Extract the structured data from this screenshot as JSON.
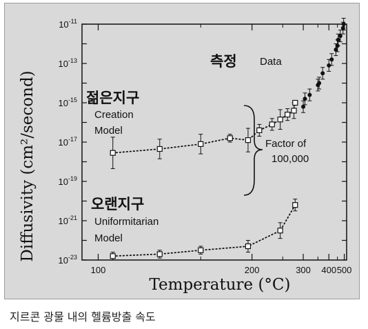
{
  "caption": "지르콘 광물 내의 헬륨방출 속도",
  "chart_data": {
    "type": "scatter",
    "xlabel": "Temperature (°C)",
    "ylabel": "Diffusivity (cm²/second)",
    "x_scale": "reciprocal",
    "y_scale": "log",
    "xlim": [
      95,
      520
    ],
    "ylim": [
      1e-23,
      1e-11
    ],
    "x_ticks": [
      "100",
      "200",
      "300",
      "400",
      "500"
    ],
    "y_ticks": [
      {
        "base": "10",
        "exp": "-11"
      },
      {
        "base": "10",
        "exp": "-13"
      },
      {
        "base": "10",
        "exp": "-15"
      },
      {
        "base": "10",
        "exp": "-17"
      },
      {
        "base": "10",
        "exp": "-19"
      },
      {
        "base": "10",
        "exp": "-21"
      },
      {
        "base": "10",
        "exp": "-23"
      }
    ],
    "series": [
      {
        "name": "Data",
        "marker": "filled-circle",
        "points": [
          {
            "x": 300,
            "y": -15.2,
            "err": 0.3
          },
          {
            "x": 305,
            "y": -14.8,
            "err": 0.3
          },
          {
            "x": 320,
            "y": -14.6,
            "err": 0.3
          },
          {
            "x": 350,
            "y": -14.1,
            "err": 0.3
          },
          {
            "x": 355,
            "y": -14.0,
            "err": 0.3
          },
          {
            "x": 370,
            "y": -13.5,
            "err": 0.3
          },
          {
            "x": 400,
            "y": -13.1,
            "err": 0.3
          },
          {
            "x": 415,
            "y": -12.8,
            "err": 0.3
          },
          {
            "x": 440,
            "y": -12.3,
            "err": 0.3
          },
          {
            "x": 450,
            "y": -12.1,
            "err": 0.3
          },
          {
            "x": 455,
            "y": -11.8,
            "err": 0.3
          },
          {
            "x": 470,
            "y": -11.6,
            "err": 0.3
          },
          {
            "x": 490,
            "y": -11.2,
            "err": 0.3
          },
          {
            "x": 495,
            "y": -11.0,
            "err": 0.3
          }
        ]
      },
      {
        "name": "Creation Model",
        "marker": "open-square",
        "points": [
          {
            "x": 105,
            "y": -17.55,
            "err": 0.8
          },
          {
            "x": 125,
            "y": -17.35,
            "err": 0.5
          },
          {
            "x": 150,
            "y": -17.1,
            "err": 0.5
          },
          {
            "x": 175,
            "y": -16.8,
            "err": 0.2
          },
          {
            "x": 195,
            "y": -16.9,
            "err": 0.6
          },
          {
            "x": 210,
            "y": -16.4,
            "err": 0.3
          },
          {
            "x": 230,
            "y": -16.1,
            "err": 0.3
          },
          {
            "x": 245,
            "y": -15.85,
            "err": 0.5
          },
          {
            "x": 260,
            "y": -15.6,
            "err": 0.3
          },
          {
            "x": 275,
            "y": -15.4,
            "err": 0.4
          },
          {
            "x": 278,
            "y": -15.0,
            "err": 0.1
          }
        ]
      },
      {
        "name": "Uniformitarian Model",
        "marker": "open-square",
        "points": [
          {
            "x": 105,
            "y": -22.8,
            "err": 0.2
          },
          {
            "x": 125,
            "y": -22.7,
            "err": 0.2
          },
          {
            "x": 150,
            "y": -22.5,
            "err": 0.2
          },
          {
            "x": 195,
            "y": -22.3,
            "err": 0.3
          },
          {
            "x": 245,
            "y": -21.5,
            "err": 0.4
          },
          {
            "x": 278,
            "y": -20.2,
            "err": 0.3
          }
        ]
      }
    ],
    "annotations": {
      "data_ko": "측정",
      "data_en": "Data",
      "creation_ko": "젊은지구",
      "creation_line1": "Creation",
      "creation_line2": "Model",
      "uniform_ko": "오랜지구",
      "uniform_line1": "Uniformitarian",
      "uniform_line2": "Model",
      "factor_line1": "Factor of",
      "factor_line2": "100,000"
    }
  }
}
